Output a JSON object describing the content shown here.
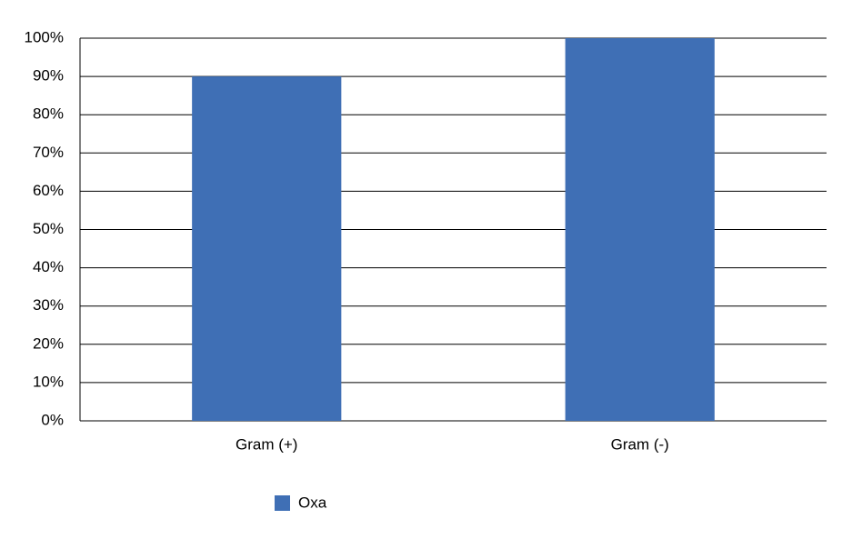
{
  "chart_data": {
    "type": "bar",
    "categories": [
      "Gram (+)",
      "Gram (-)"
    ],
    "series": [
      {
        "name": "Oxa",
        "color": "#3f6fb5",
        "values": [
          90,
          100
        ]
      }
    ],
    "ylim": [
      0,
      100
    ],
    "yticks": [
      {
        "value": 0,
        "label": "0%"
      },
      {
        "value": 10,
        "label": "10%"
      },
      {
        "value": 20,
        "label": "20%"
      },
      {
        "value": 30,
        "label": "30%"
      },
      {
        "value": 40,
        "label": "40%"
      },
      {
        "value": 50,
        "label": "50%"
      },
      {
        "value": 60,
        "label": "60%"
      },
      {
        "value": 70,
        "label": "70%"
      },
      {
        "value": 80,
        "label": "80%"
      },
      {
        "value": 90,
        "label": "90%"
      },
      {
        "value": 100,
        "label": "100%"
      }
    ],
    "grid": true,
    "legend": "bottom"
  }
}
